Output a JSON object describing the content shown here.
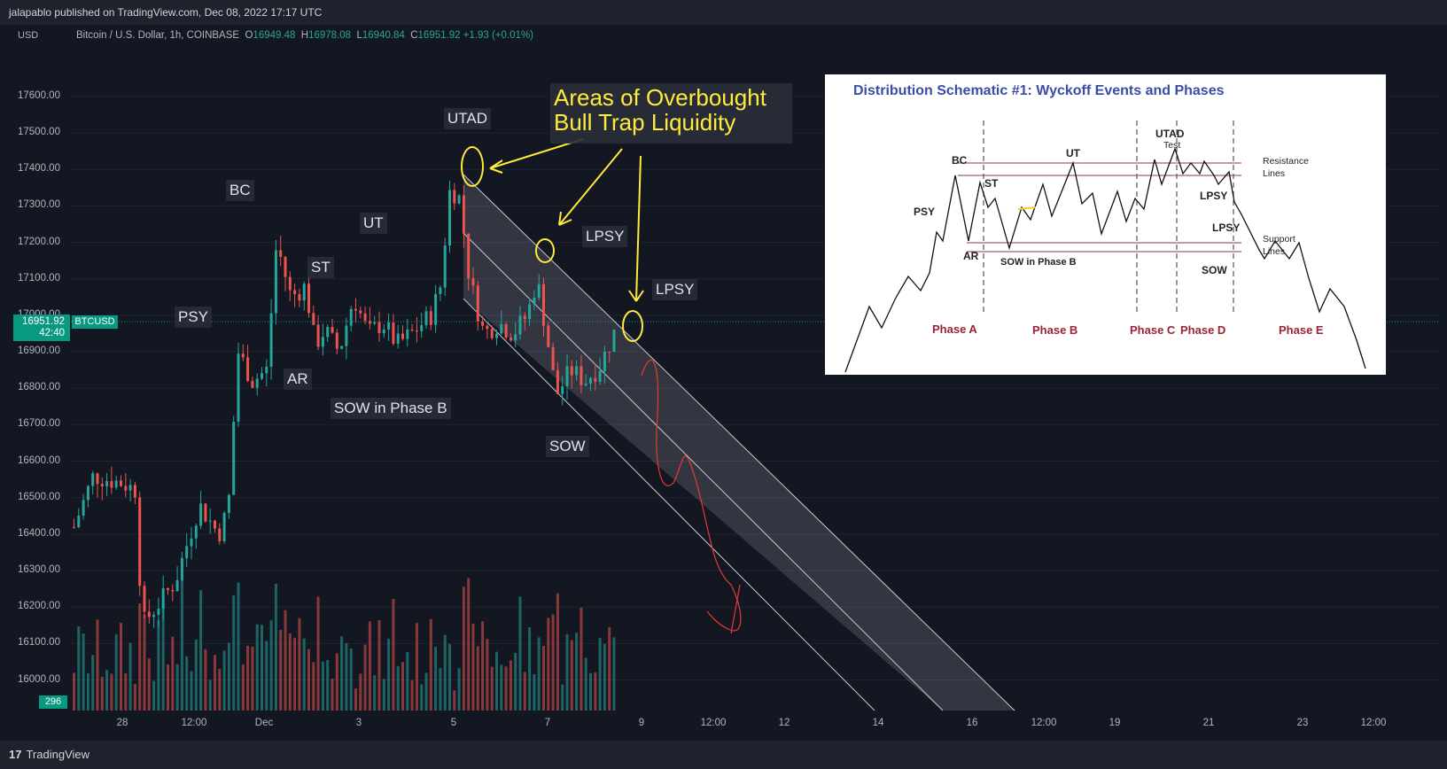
{
  "header": {
    "publisher": "jalapablo published on TradingView.com, Dec 08, 2022 17:17 UTC"
  },
  "footer": {
    "brand": "TradingView",
    "brand_icon": "tv-logo-icon"
  },
  "symbol": {
    "currency": "USD",
    "name": "Bitcoin / U.S. Dollar, 1h, COINBASE",
    "o_label": "O",
    "o": "16949.48",
    "h_label": "H",
    "h": "16978.08",
    "l_label": "L",
    "l": "16940.84",
    "c_label": "C",
    "c": "16951.92",
    "change": "+1.93 (+0.01%)"
  },
  "badges": {
    "price": "16951.92",
    "countdown": "42:40",
    "ticker": "BTCUSD",
    "volume": "296"
  },
  "annotations": {
    "note_line1": "Areas of Overbought",
    "note_line2": "Bull Trap Liquidity",
    "utad": "UTAD",
    "bc": "BC",
    "psy": "PSY",
    "st": "ST",
    "ar": "AR",
    "ut": "UT",
    "sow_b": "SOW in Phase B",
    "lpsy1": "LPSY",
    "lpsy2": "LPSY",
    "sow": "SOW"
  },
  "schematic": {
    "title": "Distribution Schematic #1: Wyckoff Events and Phases",
    "labels": {
      "bc": "BC",
      "psy": "PSY",
      "st": "ST",
      "ar": "AR",
      "ut": "UT",
      "sow_b": "SOW in Phase B",
      "utad": "UTAD",
      "test": "Test",
      "lpsy1": "LPSY",
      "lpsy2": "LPSY",
      "sow": "SOW",
      "resistance": "Resistance",
      "resistance2": "Lines",
      "support": "Support",
      "support2": "Lines"
    },
    "phases": [
      "Phase A",
      "Phase B",
      "Phase C",
      "Phase D",
      "Phase E"
    ]
  },
  "colors": {
    "up": "#26a69a",
    "down": "#ef5350",
    "yellow": "#ffeb3b",
    "accent": "#089981"
  },
  "chart_data": {
    "type": "candlestick",
    "title": "Bitcoin / U.S. Dollar, 1h, COINBASE",
    "ylabel": "USD",
    "ylim": [
      15960,
      17680
    ],
    "y_ticks": [
      "17600.00",
      "17500.00",
      "17400.00",
      "17300.00",
      "17200.00",
      "17100.00",
      "17000.00",
      "16900.00",
      "16800.00",
      "16700.00",
      "16600.00",
      "16500.00",
      "16400.00",
      "16300.00",
      "16200.00",
      "16100.00",
      "16000.00"
    ],
    "x_ticks": [
      "28",
      "12:00",
      "Dec",
      "3",
      "5",
      "7",
      "9",
      "12:00",
      "12",
      "14",
      "16",
      "12:00",
      "19",
      "21",
      "23",
      "12:00"
    ],
    "price_path": [
      {
        "t": 0,
        "p": 16420
      },
      {
        "t": 4,
        "p": 16560
      },
      {
        "t": 10,
        "p": 16540
      },
      {
        "t": 13,
        "p": 16520
      },
      {
        "t": 14,
        "p": 16150
      },
      {
        "t": 17,
        "p": 16200
      },
      {
        "t": 21,
        "p": 16270
      },
      {
        "t": 26,
        "p": 16480
      },
      {
        "t": 30,
        "p": 16400
      },
      {
        "t": 32,
        "p": 16470
      },
      {
        "t": 34,
        "p": 16900
      },
      {
        "t": 37,
        "p": 16820
      },
      {
        "t": 40,
        "p": 16850
      },
      {
        "t": 42,
        "p": 17200
      },
      {
        "t": 45,
        "p": 17050
      },
      {
        "t": 48,
        "p": 17080
      },
      {
        "t": 50,
        "p": 16920
      },
      {
        "t": 52,
        "p": 16960
      },
      {
        "t": 55,
        "p": 16900
      },
      {
        "t": 58,
        "p": 17050
      },
      {
        "t": 61,
        "p": 16950
      },
      {
        "t": 64,
        "p": 16980
      },
      {
        "t": 67,
        "p": 16920
      },
      {
        "t": 70,
        "p": 16950
      },
      {
        "t": 74,
        "p": 17000
      },
      {
        "t": 76,
        "p": 17080
      },
      {
        "t": 78,
        "p": 17350
      },
      {
        "t": 80,
        "p": 17320
      },
      {
        "t": 82,
        "p": 17100
      },
      {
        "t": 85,
        "p": 16950
      },
      {
        "t": 88,
        "p": 16980
      },
      {
        "t": 91,
        "p": 16950
      },
      {
        "t": 94,
        "p": 17000
      },
      {
        "t": 96,
        "p": 17100
      },
      {
        "t": 98,
        "p": 16950
      },
      {
        "t": 100,
        "p": 16780
      },
      {
        "t": 103,
        "p": 16850
      },
      {
        "t": 106,
        "p": 16820
      },
      {
        "t": 109,
        "p": 16860
      },
      {
        "t": 112,
        "p": 16952
      }
    ],
    "volume_max": 300
  }
}
